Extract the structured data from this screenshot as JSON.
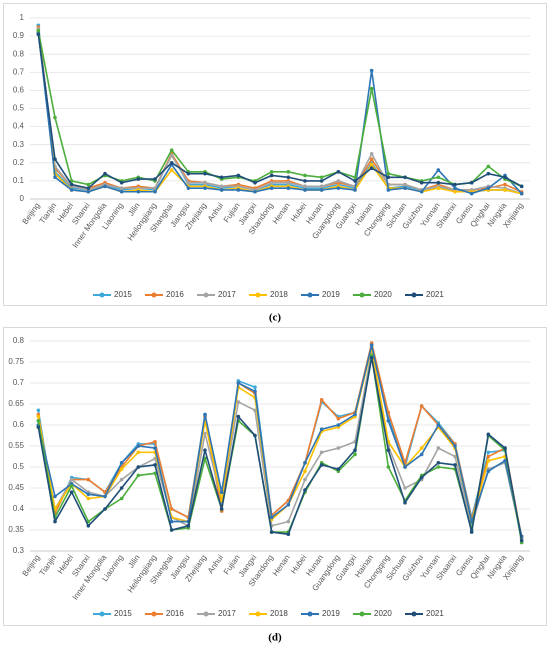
{
  "chart_data": [
    {
      "type": "line",
      "caption": "(c)",
      "categories": [
        "Beijing",
        "Tianjin",
        "Hebei",
        "Shanxi",
        "Inner Mongolia",
        "Liaoning",
        "Jilin",
        "Heilongjiang",
        "Shanghai",
        "Jiangsu",
        "Zhejiang",
        "Anhui",
        "Fujian",
        "Jiangxi",
        "Shandong",
        "Henan",
        "Hubei",
        "Hunan",
        "Guangdong",
        "Guangxi",
        "Hainan",
        "Chongqing",
        "Sichuan",
        "Guizhou",
        "Yunnan",
        "Shaanxi",
        "Gansu",
        "Qinghai",
        "Ningxia",
        "Xinjiang"
      ],
      "ylim": [
        0,
        1
      ],
      "yticks": [
        0,
        0.1,
        0.2,
        0.3,
        0.4,
        0.5,
        0.6,
        0.7,
        0.8,
        0.9,
        1
      ],
      "grid": true,
      "series": [
        {
          "name": "2015",
          "color": "#3fa9dc",
          "values": [
            0.96,
            0.15,
            0.06,
            0.05,
            0.08,
            0.05,
            0.06,
            0.05,
            0.25,
            0.08,
            0.08,
            0.06,
            0.07,
            0.05,
            0.08,
            0.08,
            0.06,
            0.06,
            0.08,
            0.06,
            0.2,
            0.06,
            0.07,
            0.05,
            0.06,
            0.05,
            0.04,
            0.05,
            0.05,
            0.03
          ]
        },
        {
          "name": "2016",
          "color": "#ed7d31",
          "values": [
            0.95,
            0.17,
            0.07,
            0.06,
            0.09,
            0.06,
            0.07,
            0.06,
            0.25,
            0.1,
            0.09,
            0.07,
            0.08,
            0.06,
            0.1,
            0.1,
            0.07,
            0.07,
            0.09,
            0.07,
            0.22,
            0.08,
            0.08,
            0.05,
            0.08,
            0.05,
            0.05,
            0.06,
            0.08,
            0.04
          ]
        },
        {
          "name": "2017",
          "color": "#a5a5a5",
          "values": [
            0.94,
            0.18,
            0.07,
            0.05,
            0.08,
            0.06,
            0.06,
            0.06,
            0.24,
            0.09,
            0.09,
            0.07,
            0.07,
            0.05,
            0.09,
            0.09,
            0.07,
            0.07,
            0.1,
            0.07,
            0.25,
            0.08,
            0.08,
            0.05,
            0.07,
            0.05,
            0.05,
            0.07,
            0.06,
            0.03
          ]
        },
        {
          "name": "2018",
          "color": "#ffc000",
          "values": [
            0.93,
            0.14,
            0.05,
            0.04,
            0.07,
            0.04,
            0.05,
            0.04,
            0.16,
            0.07,
            0.07,
            0.05,
            0.06,
            0.04,
            0.07,
            0.07,
            0.05,
            0.05,
            0.07,
            0.05,
            0.19,
            0.06,
            0.06,
            0.04,
            0.06,
            0.04,
            0.04,
            0.05,
            0.05,
            0.03
          ]
        },
        {
          "name": "2019",
          "color": "#2e75b6",
          "values": [
            0.92,
            0.12,
            0.05,
            0.04,
            0.07,
            0.04,
            0.04,
            0.04,
            0.19,
            0.06,
            0.06,
            0.05,
            0.05,
            0.04,
            0.06,
            0.06,
            0.05,
            0.05,
            0.06,
            0.05,
            0.71,
            0.05,
            0.06,
            0.04,
            0.16,
            0.06,
            0.03,
            0.06,
            0.13,
            0.03
          ]
        },
        {
          "name": "2020",
          "color": "#4cae3c",
          "values": [
            0.93,
            0.45,
            0.1,
            0.08,
            0.13,
            0.1,
            0.12,
            0.1,
            0.27,
            0.15,
            0.15,
            0.11,
            0.12,
            0.1,
            0.15,
            0.15,
            0.13,
            0.12,
            0.15,
            0.12,
            0.61,
            0.14,
            0.12,
            0.1,
            0.12,
            0.08,
            0.09,
            0.18,
            0.11,
            0.07
          ]
        },
        {
          "name": "2021",
          "color": "#1f4e79",
          "values": [
            0.91,
            0.22,
            0.08,
            0.06,
            0.14,
            0.09,
            0.11,
            0.11,
            0.2,
            0.14,
            0.14,
            0.12,
            0.13,
            0.09,
            0.13,
            0.12,
            0.1,
            0.1,
            0.15,
            0.1,
            0.17,
            0.12,
            0.12,
            0.09,
            0.09,
            0.08,
            0.09,
            0.14,
            0.12,
            0.07
          ]
        }
      ]
    },
    {
      "type": "line",
      "caption": "(d)",
      "categories": [
        "Beijing",
        "Tianjin",
        "Hebei",
        "Shanxi",
        "Inner Mongolia",
        "Liaoning",
        "Jilin",
        "Heilongjiang",
        "Shanghai",
        "Jiangsu",
        "Zhejiang",
        "Anhui",
        "Fujian",
        "Jiangxi",
        "Shandong",
        "Henan",
        "Hubei",
        "Hunan",
        "Guangdong",
        "Guangxi",
        "Hainan",
        "Chongqing",
        "Sichuan",
        "Guizhou",
        "Yunnan",
        "Shaanxi",
        "Gansu",
        "Qinghai",
        "Ningxia",
        "Xinjiang"
      ],
      "ylim": [
        0.3,
        0.8
      ],
      "yticks": [
        0.3,
        0.35,
        0.4,
        0.45,
        0.5,
        0.55,
        0.6,
        0.65,
        0.7,
        0.75,
        0.8
      ],
      "grid": true,
      "series": [
        {
          "name": "2015",
          "color": "#3fa9dc",
          "values": [
            0.635,
            0.39,
            0.475,
            0.47,
            0.44,
            0.51,
            0.555,
            0.555,
            0.4,
            0.38,
            0.625,
            0.41,
            0.705,
            0.69,
            0.385,
            0.42,
            0.51,
            0.655,
            0.62,
            0.63,
            0.79,
            0.62,
            0.5,
            0.645,
            0.605,
            0.555,
            0.38,
            0.535,
            0.54,
            0.33
          ]
        },
        {
          "name": "2016",
          "color": "#ed7d31",
          "values": [
            0.625,
            0.39,
            0.47,
            0.47,
            0.44,
            0.5,
            0.55,
            0.56,
            0.4,
            0.38,
            0.62,
            0.395,
            0.7,
            0.675,
            0.385,
            0.42,
            0.51,
            0.66,
            0.615,
            0.63,
            0.795,
            0.63,
            0.51,
            0.645,
            0.6,
            0.555,
            0.375,
            0.525,
            0.545,
            0.33
          ]
        },
        {
          "name": "2017",
          "color": "#a5a5a5",
          "values": [
            0.61,
            0.4,
            0.47,
            0.44,
            0.43,
            0.47,
            0.5,
            0.52,
            0.38,
            0.36,
            0.58,
            0.42,
            0.655,
            0.635,
            0.36,
            0.37,
            0.47,
            0.535,
            0.545,
            0.56,
            0.775,
            0.55,
            0.45,
            0.47,
            0.545,
            0.525,
            0.36,
            0.495,
            0.51,
            0.33
          ]
        },
        {
          "name": "2018",
          "color": "#ffc000",
          "values": [
            0.62,
            0.4,
            0.46,
            0.425,
            0.43,
            0.495,
            0.535,
            0.535,
            0.38,
            0.37,
            0.61,
            0.42,
            0.69,
            0.665,
            0.375,
            0.41,
            0.49,
            0.585,
            0.595,
            0.62,
            0.785,
            0.56,
            0.5,
            0.545,
            0.595,
            0.545,
            0.37,
            0.515,
            0.525,
            0.335
          ]
        },
        {
          "name": "2019",
          "color": "#2e75b6",
          "values": [
            0.6,
            0.43,
            0.46,
            0.435,
            0.43,
            0.51,
            0.55,
            0.545,
            0.37,
            0.37,
            0.625,
            0.44,
            0.7,
            0.68,
            0.38,
            0.41,
            0.51,
            0.59,
            0.6,
            0.625,
            0.79,
            0.61,
            0.5,
            0.53,
            0.6,
            0.55,
            0.37,
            0.49,
            0.515,
            0.335
          ]
        },
        {
          "name": "2020",
          "color": "#4cae3c",
          "values": [
            0.61,
            0.38,
            0.455,
            0.37,
            0.4,
            0.425,
            0.48,
            0.485,
            0.35,
            0.355,
            0.52,
            0.4,
            0.61,
            0.575,
            0.345,
            0.345,
            0.44,
            0.51,
            0.49,
            0.53,
            0.765,
            0.5,
            0.42,
            0.48,
            0.5,
            0.495,
            0.35,
            0.575,
            0.54,
            0.32
          ]
        },
        {
          "name": "2021",
          "color": "#1f4e79",
          "values": [
            0.595,
            0.37,
            0.44,
            0.36,
            0.4,
            0.45,
            0.5,
            0.505,
            0.35,
            0.36,
            0.54,
            0.4,
            0.62,
            0.575,
            0.345,
            0.34,
            0.445,
            0.505,
            0.495,
            0.54,
            0.76,
            0.54,
            0.415,
            0.475,
            0.51,
            0.505,
            0.345,
            0.578,
            0.545,
            0.325
          ]
        }
      ]
    }
  ]
}
